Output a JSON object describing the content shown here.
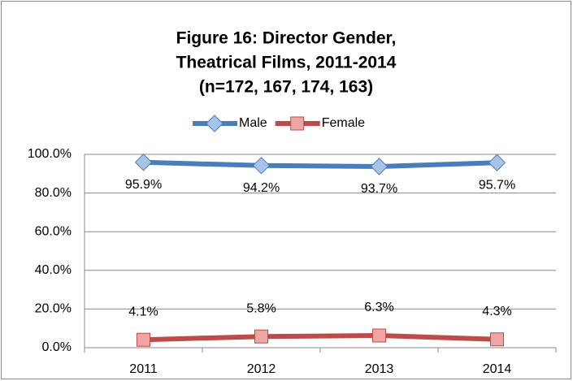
{
  "chart_data": {
    "type": "line",
    "title": [
      "Figure 16:  Director Gender,",
      "Theatrical Films, 2011-2014",
      "(n=172, 167, 174, 163)"
    ],
    "categories": [
      "2011",
      "2012",
      "2013",
      "2014"
    ],
    "series": [
      {
        "name": "Male",
        "color": "#4a7ebb",
        "marker": "diamond",
        "values": [
          95.9,
          94.2,
          93.7,
          95.7
        ],
        "value_labels": [
          "95.9%",
          "94.2%",
          "93.7%",
          "95.7%"
        ]
      },
      {
        "name": "Female",
        "color": "#be4b48",
        "marker": "square",
        "values": [
          4.1,
          5.8,
          6.3,
          4.3
        ],
        "value_labels": [
          "4.1%",
          "5.8%",
          "6.3%",
          "4.3%"
        ]
      }
    ],
    "ylim": [
      0,
      100
    ],
    "yticks": [
      {
        "value": 0,
        "label": "0.0%"
      },
      {
        "value": 20,
        "label": "20.0%"
      },
      {
        "value": 40,
        "label": "40.0%"
      },
      {
        "value": 60,
        "label": "60.0%"
      },
      {
        "value": 80,
        "label": "80.0%"
      },
      {
        "value": 100,
        "label": "100.0%"
      }
    ],
    "grid": true,
    "legend": "top"
  }
}
